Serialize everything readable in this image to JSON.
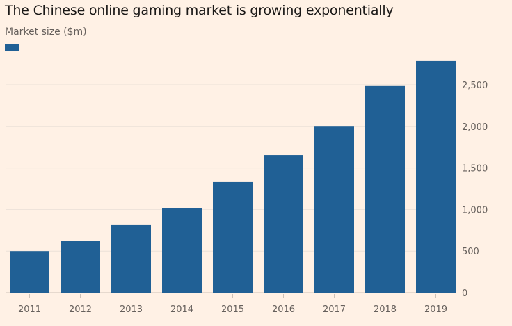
{
  "chart_data": {
    "type": "bar",
    "title": "The Chinese online gaming market is growing exponentially",
    "subtitle": "Market size ($m)",
    "categories": [
      "2011",
      "2012",
      "2013",
      "2014",
      "2015",
      "2016",
      "2017",
      "2018",
      "2019"
    ],
    "values": [
      500,
      620,
      820,
      1020,
      1330,
      1655,
      2005,
      2485,
      2785
    ],
    "ylim": [
      0,
      2800
    ],
    "yticks": [
      0,
      500,
      1000,
      1500,
      2000,
      2500
    ],
    "ytick_labels": [
      "0",
      "500",
      "1,000",
      "1,500",
      "2,000",
      "2,500"
    ],
    "y_axis_side": "right",
    "grid": true,
    "legend": "top-left",
    "colors": {
      "bar": "#206095",
      "grid": "#ebe1d8",
      "background": "#fff1e5"
    }
  }
}
